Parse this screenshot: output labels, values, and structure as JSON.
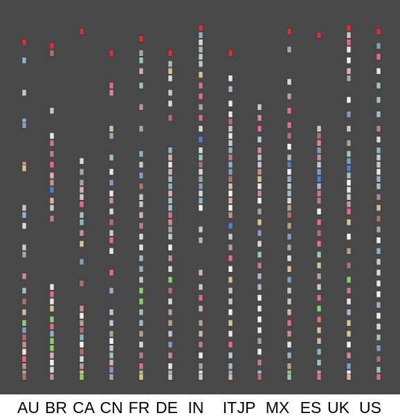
{
  "chart_data": {
    "type": "scatter",
    "title": "",
    "xlabel": "",
    "ylabel": "",
    "grid": false,
    "background": "#484848",
    "categories": [
      "AU",
      "BR",
      "CA",
      "CN",
      "FR",
      "DE",
      "IN",
      "IT",
      "JP",
      "MX",
      "ES",
      "UK",
      "US"
    ],
    "columns": [
      {
        "label": "AU",
        "thumbnails": [
          0.94,
          0.89,
          0.8,
          0.72,
          0.71,
          0.6,
          0.59,
          0.48,
          0.46,
          0.43,
          0.37,
          0.35,
          0.29,
          0.25,
          0.22,
          0.19,
          0.16,
          0.14,
          0.12,
          0.1,
          0.08,
          0.06,
          0.04,
          0.02,
          0.01
        ]
      },
      {
        "label": "BR",
        "thumbnails": [
          0.93,
          0.91,
          0.75,
          0.68,
          0.66,
          0.63,
          0.6,
          0.57,
          0.55,
          0.53,
          0.5,
          0.48,
          0.45,
          0.26,
          0.24,
          0.22,
          0.2,
          0.17,
          0.15,
          0.13,
          0.11,
          0.09,
          0.07,
          0.05,
          0.03,
          0.01
        ]
      },
      {
        "label": "CA",
        "thumbnails": [
          0.97,
          0.61,
          0.58,
          0.55,
          0.53,
          0.51,
          0.49,
          0.46,
          0.44,
          0.41,
          0.38,
          0.33,
          0.27,
          0.2,
          0.18,
          0.16,
          0.14,
          0.12,
          0.1,
          0.08,
          0.06,
          0.04,
          0.02,
          0.01
        ]
      },
      {
        "label": "CN",
        "thumbnails": [
          0.91,
          0.82,
          0.8,
          0.7,
          0.68,
          0.62,
          0.58,
          0.55,
          0.52,
          0.5,
          0.47,
          0.44,
          0.41,
          0.39,
          0.36,
          0.3,
          0.25,
          0.19,
          0.16,
          0.13,
          0.11,
          0.09,
          0.07,
          0.05,
          0.03,
          0.01
        ]
      },
      {
        "label": "FR",
        "thumbnails": [
          0.95,
          0.91,
          0.89,
          0.86,
          0.82,
          0.76,
          0.7,
          0.63,
          0.6,
          0.57,
          0.54,
          0.51,
          0.49,
          0.46,
          0.43,
          0.4,
          0.37,
          0.34,
          0.31,
          0.28,
          0.25,
          0.22,
          0.19,
          0.16,
          0.13,
          0.1,
          0.07,
          0.04,
          0.02,
          0.01
        ]
      },
      {
        "label": "DE",
        "thumbnails": [
          0.91,
          0.88,
          0.86,
          0.84,
          0.8,
          0.77,
          0.73,
          0.64,
          0.62,
          0.6,
          0.58,
          0.56,
          0.54,
          0.52,
          0.5,
          0.48,
          0.46,
          0.44,
          0.42,
          0.4,
          0.37,
          0.34,
          0.31,
          0.28,
          0.25,
          0.22,
          0.19,
          0.16,
          0.13,
          0.1,
          0.07,
          0.04,
          0.02,
          0.01
        ]
      },
      {
        "label": "IN",
        "thumbnails": [
          0.98,
          0.96,
          0.94,
          0.92,
          0.9,
          0.88,
          0.85,
          0.82,
          0.79,
          0.76,
          0.73,
          0.7,
          0.67,
          0.64,
          0.62,
          0.6,
          0.58,
          0.56,
          0.54,
          0.52,
          0.5,
          0.48,
          0.42,
          0.39,
          0.3,
          0.26,
          0.23,
          0.2,
          0.16,
          0.13,
          0.1,
          0.07,
          0.04,
          0.02,
          0.01
        ]
      },
      {
        "label": "IT",
        "thumbnails": [
          0.91,
          0.84,
          0.81,
          0.77,
          0.74,
          0.72,
          0.7,
          0.68,
          0.66,
          0.64,
          0.62,
          0.6,
          0.58,
          0.56,
          0.54,
          0.52,
          0.5,
          0.48,
          0.46,
          0.43,
          0.4,
          0.37,
          0.34,
          0.31,
          0.28,
          0.25,
          0.22,
          0.19,
          0.16,
          0.13,
          0.1,
          0.07,
          0.04,
          0.02,
          0.01
        ]
      },
      {
        "label": "JP",
        "thumbnails": [
          0.76,
          0.73,
          0.7,
          0.67,
          0.64,
          0.62,
          0.6,
          0.58,
          0.56,
          0.54,
          0.52,
          0.5,
          0.47,
          0.44,
          0.41,
          0.38,
          0.35,
          0.32,
          0.29,
          0.26,
          0.23,
          0.2,
          0.17,
          0.14,
          0.11,
          0.08,
          0.05,
          0.02,
          0.01
        ]
      },
      {
        "label": "MX",
        "thumbnails": [
          0.97,
          0.92,
          0.83,
          0.79,
          0.75,
          0.71,
          0.68,
          0.65,
          0.62,
          0.6,
          0.58,
          0.56,
          0.54,
          0.52,
          0.5,
          0.48,
          0.46,
          0.43,
          0.4,
          0.37,
          0.34,
          0.31,
          0.28,
          0.25,
          0.22,
          0.19,
          0.16,
          0.13,
          0.1,
          0.07,
          0.04,
          0.02,
          0.01
        ]
      },
      {
        "label": "ES",
        "thumbnails": [
          0.96,
          0.7,
          0.68,
          0.66,
          0.64,
          0.62,
          0.6,
          0.58,
          0.56,
          0.54,
          0.52,
          0.5,
          0.47,
          0.44,
          0.41,
          0.38,
          0.35,
          0.32,
          0.29,
          0.26,
          0.23,
          0.2,
          0.17,
          0.14,
          0.11,
          0.08,
          0.05,
          0.02,
          0.01
        ]
      },
      {
        "label": "UK",
        "thumbnails": [
          0.98,
          0.96,
          0.94,
          0.92,
          0.89,
          0.86,
          0.84,
          0.78,
          0.74,
          0.7,
          0.66,
          0.63,
          0.61,
          0.59,
          0.57,
          0.55,
          0.53,
          0.51,
          0.49,
          0.47,
          0.44,
          0.4,
          0.36,
          0.32,
          0.28,
          0.25,
          0.22,
          0.19,
          0.16,
          0.13,
          0.1,
          0.07,
          0.04,
          0.02,
          0.01
        ]
      },
      {
        "label": "US",
        "thumbnails": [
          0.97,
          0.93,
          0.9,
          0.86,
          0.82,
          0.78,
          0.74,
          0.7,
          0.67,
          0.64,
          0.62,
          0.6,
          0.58,
          0.56,
          0.54,
          0.51,
          0.48,
          0.45,
          0.42,
          0.39,
          0.36,
          0.33,
          0.3,
          0.27,
          0.24,
          0.21,
          0.18,
          0.15,
          0.12,
          0.09,
          0.06,
          0.03,
          0.01
        ]
      }
    ],
    "thumbnail_colors": [
      "#d8d8d8",
      "#c9c9c9",
      "#e6e6e6",
      "#bfc7cf",
      "#a9b8c8",
      "#d6b3a6",
      "#c98f8f",
      "#b07070",
      "#8fb3c9",
      "#9cc4b8",
      "#d4c28f",
      "#a6a6a6",
      "#f0f0f0",
      "#c27b8c",
      "#7f9cc2",
      "#b5a28a"
    ],
    "accent_colors": {
      "red": "#d6303a",
      "pink": "#e26a8a",
      "green": "#8fcf6a",
      "blue": "#4d7fd6"
    }
  }
}
